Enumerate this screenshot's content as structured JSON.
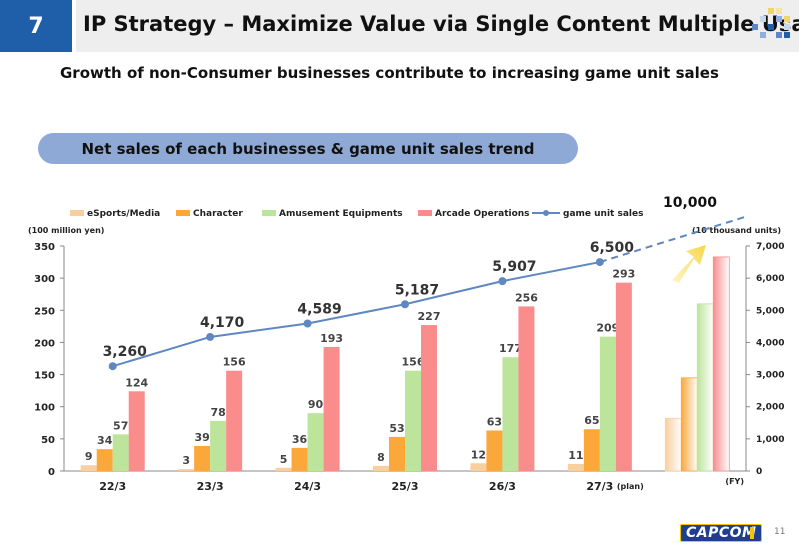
{
  "header": {
    "page_number": "7",
    "title": "IP Strategy – Maximize Value via Single Content Multiple Usage"
  },
  "subtitle": "Growth of non-Consumer businesses contribute to increasing game unit sales",
  "section_label": "Net sales of each businesses & game unit sales trend",
  "footer": {
    "logo_text": "CAPCOM",
    "page": "11"
  },
  "colors": {
    "esports": "#f9cf9e",
    "character": "#fba73a",
    "amusement": "#bce59b",
    "arcade": "#fb8c8c",
    "units": "#5f87c0",
    "accent": "#1f5ea8"
  },
  "chart_data": {
    "type": "bar",
    "left_axis_unit": "(100 million yen)",
    "right_axis_unit": "(10 thousand units)",
    "x_axis_unit": "(FY)",
    "categories": [
      "22/3",
      "23/3",
      "24/3",
      "25/3",
      "26/3",
      "27/3",
      ""
    ],
    "plan_label": "(plan)",
    "ylim": [
      0,
      350
    ],
    "yticks": [
      "0",
      "50",
      "100",
      "150",
      "200",
      "250",
      "300",
      "350"
    ],
    "y2lim": [
      0,
      7000
    ],
    "y2ticks": [
      "0",
      "1,000",
      "2,000",
      "3,000",
      "4,000",
      "5,000",
      "6,000",
      "7,000"
    ],
    "series": [
      {
        "name": "eSports/Media",
        "values": [
          9,
          3,
          5,
          8,
          12,
          11,
          82
        ],
        "labels": [
          "9",
          "3",
          "5",
          "8",
          "12",
          "11",
          ""
        ]
      },
      {
        "name": "Character",
        "values": [
          34,
          39,
          36,
          53,
          63,
          65,
          145
        ],
        "labels": [
          "34",
          "39",
          "36",
          "53",
          "63",
          "65",
          ""
        ]
      },
      {
        "name": "Amusement Equipments",
        "values": [
          57,
          78,
          90,
          156,
          177,
          209,
          260
        ],
        "labels": [
          "57",
          "78",
          "90",
          "156",
          "177",
          "209",
          ""
        ]
      },
      {
        "name": "Arcade Operations",
        "values": [
          124,
          156,
          193,
          227,
          256,
          293,
          333
        ],
        "labels": [
          "124",
          "156",
          "193",
          "227",
          "256",
          "293",
          ""
        ]
      }
    ],
    "line": {
      "name": "game unit sales",
      "values": [
        3260,
        4170,
        4589,
        5187,
        5907,
        6500
      ],
      "labels": [
        "3,260",
        "4,170",
        "4,589",
        "5,187",
        "5,907",
        "6,500"
      ]
    },
    "target_label": "10,000"
  }
}
